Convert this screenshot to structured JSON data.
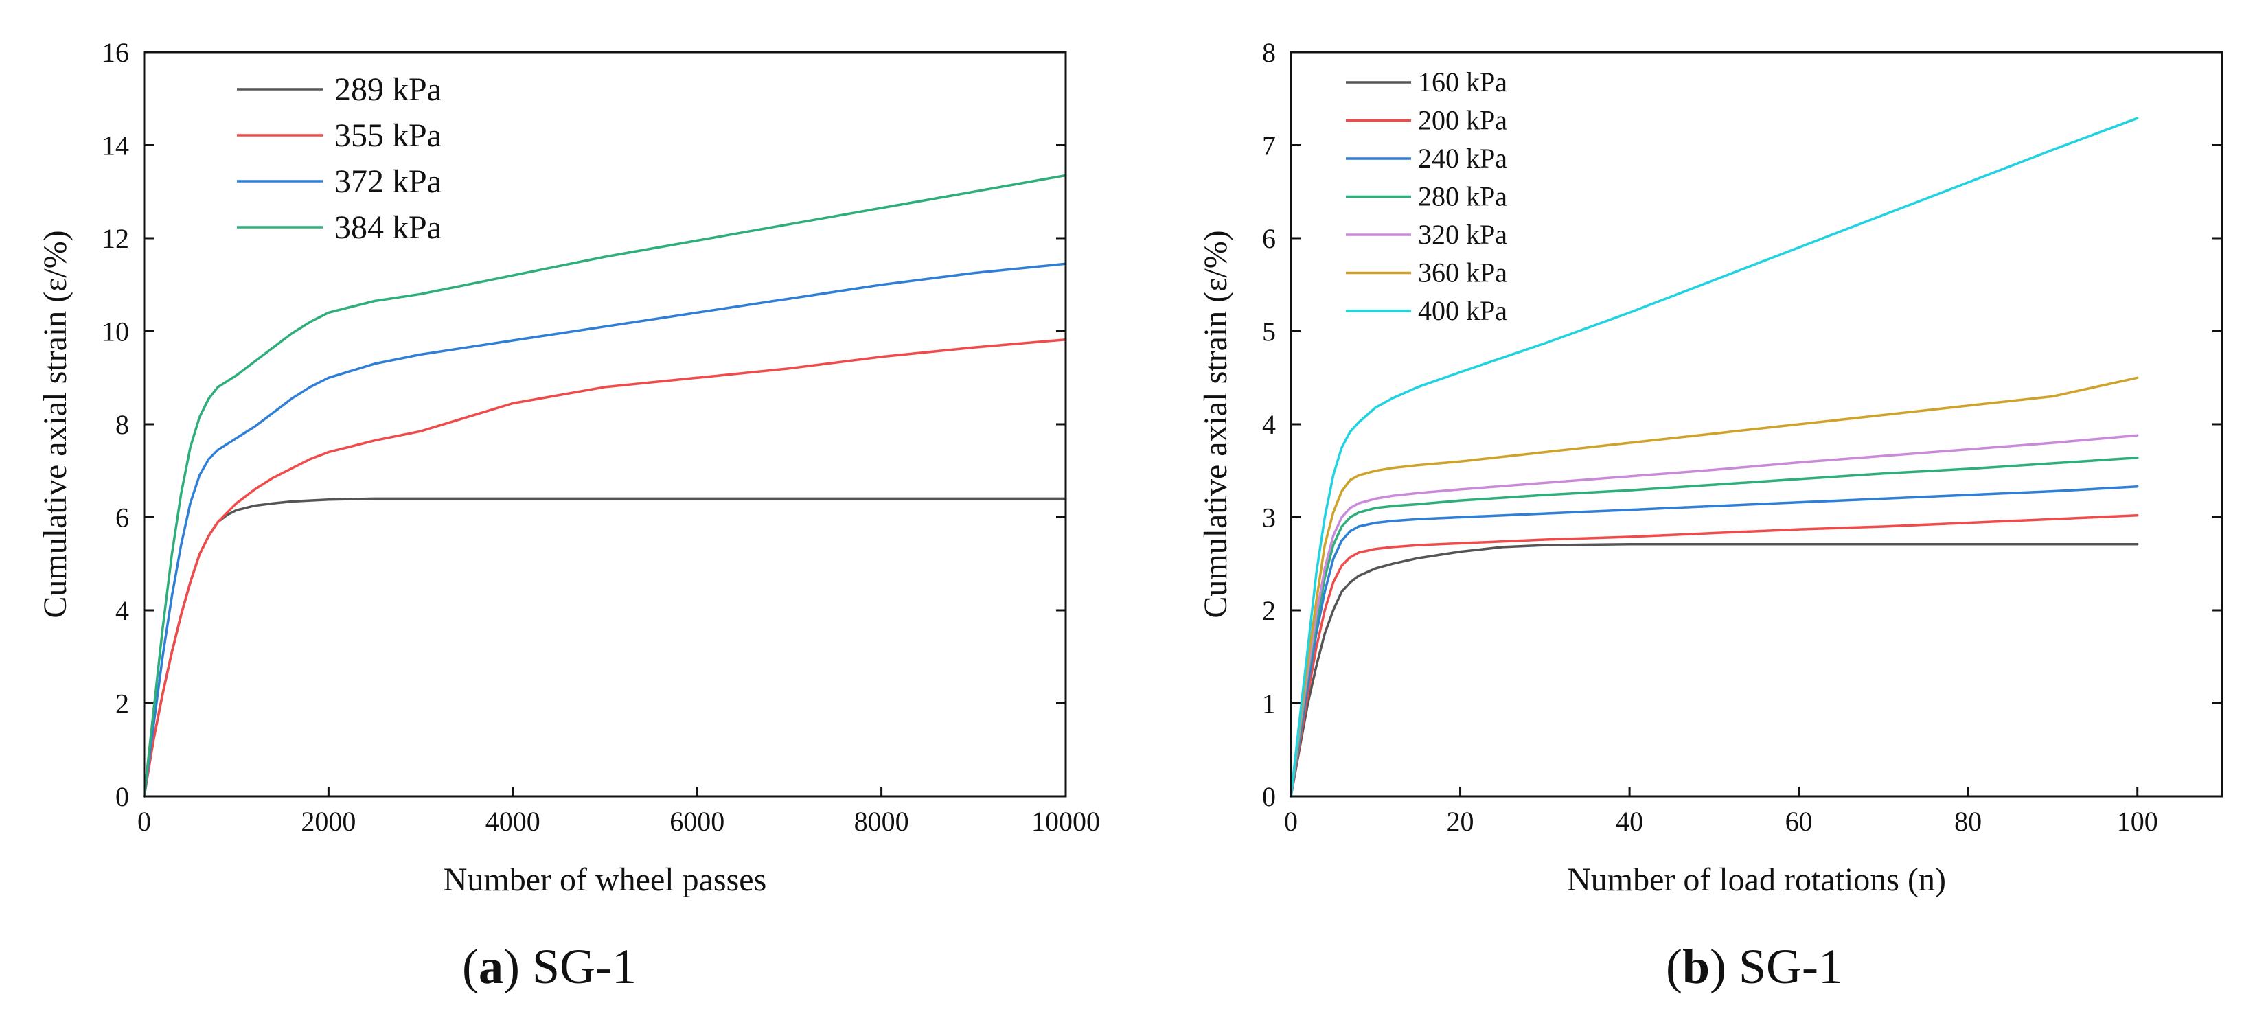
{
  "chart_data": [
    {
      "type": "line",
      "panel_letter": "a",
      "panel_name": "SG-1",
      "xlabel": "Number of wheel passes",
      "ylabel": "Cumulative axial strain (ε/%)",
      "xlim": [
        0,
        10000
      ],
      "ylim": [
        0,
        16
      ],
      "xticks": [
        0,
        2000,
        4000,
        6000,
        8000,
        10000
      ],
      "yticks": [
        0,
        2,
        4,
        6,
        8,
        10,
        12,
        14,
        16
      ],
      "legend_position": "top-left",
      "series": [
        {
          "name": "289 kPa",
          "color": "#555555",
          "x": [
            0,
            100,
            200,
            300,
            400,
            500,
            600,
            700,
            800,
            900,
            1000,
            1200,
            1400,
            1600,
            1800,
            2000,
            2500,
            3000,
            4000,
            6000,
            8000,
            10000
          ],
          "y": [
            0,
            1.2,
            2.2,
            3.1,
            3.9,
            4.6,
            5.2,
            5.6,
            5.9,
            6.05,
            6.15,
            6.25,
            6.3,
            6.34,
            6.36,
            6.38,
            6.4,
            6.4,
            6.4,
            6.4,
            6.4,
            6.4
          ]
        },
        {
          "name": "355 kPa",
          "color": "#f04b4b",
          "x": [
            0,
            100,
            200,
            300,
            400,
            500,
            600,
            700,
            800,
            900,
            1000,
            1200,
            1400,
            1600,
            1800,
            2000,
            2500,
            3000,
            3500,
            4000,
            5000,
            6000,
            7000,
            8000,
            9000,
            10000
          ],
          "y": [
            0,
            1.2,
            2.2,
            3.1,
            3.9,
            4.6,
            5.2,
            5.6,
            5.9,
            6.1,
            6.3,
            6.6,
            6.85,
            7.05,
            7.25,
            7.4,
            7.65,
            7.85,
            8.15,
            8.45,
            8.8,
            9.0,
            9.2,
            9.45,
            9.65,
            9.82
          ]
        },
        {
          "name": "372 kPa",
          "color": "#2f7fd6",
          "x": [
            0,
            100,
            200,
            300,
            400,
            500,
            600,
            700,
            800,
            1000,
            1200,
            1400,
            1600,
            1800,
            2000,
            2500,
            3000,
            3500,
            4000,
            5000,
            6000,
            7000,
            8000,
            9000,
            10000
          ],
          "y": [
            0,
            1.5,
            3.0,
            4.3,
            5.4,
            6.3,
            6.9,
            7.25,
            7.45,
            7.7,
            7.95,
            8.25,
            8.55,
            8.8,
            9.0,
            9.3,
            9.5,
            9.65,
            9.8,
            10.1,
            10.4,
            10.7,
            11.0,
            11.25,
            11.45
          ]
        },
        {
          "name": "384 kPa",
          "color": "#2eae7b",
          "x": [
            0,
            100,
            200,
            300,
            400,
            500,
            600,
            700,
            800,
            1000,
            1200,
            1400,
            1600,
            1800,
            2000,
            2200,
            2500,
            3000,
            3500,
            4000,
            5000,
            6000,
            7000,
            8000,
            9000,
            10000
          ],
          "y": [
            0,
            1.8,
            3.6,
            5.2,
            6.5,
            7.5,
            8.15,
            8.55,
            8.8,
            9.05,
            9.35,
            9.65,
            9.95,
            10.2,
            10.4,
            10.5,
            10.65,
            10.8,
            11.0,
            11.2,
            11.6,
            11.95,
            12.3,
            12.65,
            13.0,
            13.35
          ]
        }
      ]
    },
    {
      "type": "line",
      "panel_letter": "b",
      "panel_name": "SG-1",
      "xlabel": "Number of load rotations (n)",
      "ylabel": "Cumulative axial strain (ε/%)",
      "xlim": [
        0,
        110
      ],
      "ylim": [
        0,
        8
      ],
      "xticks": [
        0,
        20,
        40,
        60,
        80,
        100
      ],
      "yticks": [
        0,
        1,
        2,
        3,
        4,
        5,
        6,
        7,
        8
      ],
      "legend_position": "top-left",
      "series": [
        {
          "name": "160 kPa",
          "color": "#555555",
          "x": [
            0,
            1,
            2,
            3,
            4,
            5,
            6,
            7,
            8,
            10,
            12,
            15,
            20,
            25,
            30,
            40,
            50,
            60,
            70,
            80,
            90,
            100
          ],
          "y": [
            0,
            0.5,
            1.0,
            1.4,
            1.75,
            2.0,
            2.2,
            2.3,
            2.37,
            2.45,
            2.5,
            2.56,
            2.63,
            2.68,
            2.7,
            2.71,
            2.71,
            2.71,
            2.71,
            2.71,
            2.71,
            2.71
          ]
        },
        {
          "name": "200 kPa",
          "color": "#f04b4b",
          "x": [
            0,
            1,
            2,
            3,
            4,
            5,
            6,
            7,
            8,
            10,
            12,
            15,
            20,
            30,
            40,
            50,
            60,
            70,
            80,
            90,
            100
          ],
          "y": [
            0,
            0.55,
            1.1,
            1.6,
            2.0,
            2.3,
            2.48,
            2.57,
            2.62,
            2.66,
            2.68,
            2.7,
            2.72,
            2.76,
            2.79,
            2.83,
            2.87,
            2.9,
            2.94,
            2.98,
            3.02
          ]
        },
        {
          "name": "240 kPa",
          "color": "#2f7fd6",
          "x": [
            0,
            1,
            2,
            3,
            4,
            5,
            6,
            7,
            8,
            10,
            12,
            15,
            20,
            30,
            40,
            50,
            60,
            70,
            80,
            90,
            100
          ],
          "y": [
            0,
            0.6,
            1.2,
            1.75,
            2.2,
            2.55,
            2.75,
            2.85,
            2.9,
            2.94,
            2.96,
            2.98,
            3.0,
            3.04,
            3.08,
            3.12,
            3.16,
            3.2,
            3.24,
            3.28,
            3.33
          ]
        },
        {
          "name": "280 kPa",
          "color": "#2eae7b",
          "x": [
            0,
            1,
            2,
            3,
            4,
            5,
            6,
            7,
            8,
            10,
            12,
            15,
            20,
            30,
            40,
            50,
            60,
            70,
            80,
            90,
            100
          ],
          "y": [
            0,
            0.65,
            1.3,
            1.85,
            2.35,
            2.7,
            2.9,
            3.0,
            3.05,
            3.1,
            3.12,
            3.14,
            3.18,
            3.24,
            3.29,
            3.35,
            3.41,
            3.47,
            3.52,
            3.58,
            3.64
          ]
        },
        {
          "name": "320 kPa",
          "color": "#c98ad9",
          "x": [
            0,
            1,
            2,
            3,
            4,
            5,
            6,
            7,
            8,
            10,
            12,
            15,
            20,
            30,
            40,
            50,
            60,
            70,
            80,
            90,
            100
          ],
          "y": [
            0,
            0.7,
            1.35,
            1.95,
            2.45,
            2.8,
            3.0,
            3.1,
            3.15,
            3.2,
            3.23,
            3.26,
            3.3,
            3.37,
            3.44,
            3.51,
            3.59,
            3.66,
            3.73,
            3.8,
            3.88
          ]
        },
        {
          "name": "360 kPa",
          "color": "#cfa32b",
          "x": [
            0,
            1,
            2,
            3,
            4,
            5,
            6,
            7,
            8,
            10,
            12,
            15,
            20,
            30,
            40,
            50,
            60,
            70,
            80,
            90,
            100
          ],
          "y": [
            0,
            0.75,
            1.45,
            2.1,
            2.7,
            3.05,
            3.28,
            3.4,
            3.45,
            3.5,
            3.53,
            3.56,
            3.6,
            3.7,
            3.8,
            3.9,
            4.0,
            4.1,
            4.2,
            4.3,
            4.5
          ]
        },
        {
          "name": "400 kPa",
          "color": "#1fd3e0",
          "x": [
            0,
            1,
            2,
            3,
            4,
            5,
            6,
            7,
            8,
            9,
            10,
            12,
            15,
            20,
            30,
            40,
            50,
            60,
            70,
            80,
            90,
            100
          ],
          "y": [
            0,
            0.8,
            1.6,
            2.4,
            3.0,
            3.45,
            3.75,
            3.92,
            4.02,
            4.1,
            4.18,
            4.28,
            4.4,
            4.56,
            4.87,
            5.2,
            5.55,
            5.9,
            6.25,
            6.6,
            6.95,
            7.29
          ]
        }
      ]
    }
  ]
}
